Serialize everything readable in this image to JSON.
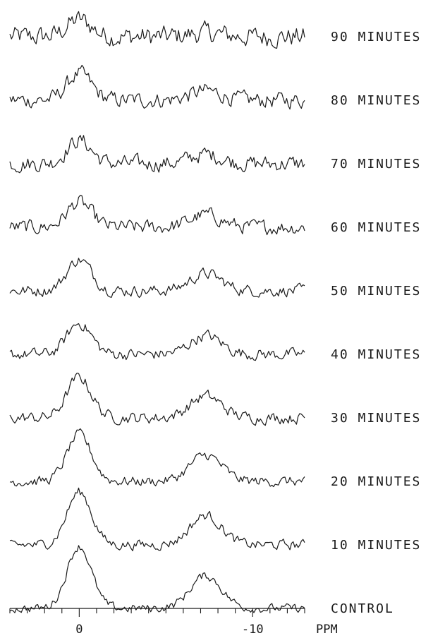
{
  "chart_data": {
    "type": "line",
    "x_unit_label": "PPM",
    "x_axis": {
      "reversed": true,
      "range": [
        4,
        -13
      ],
      "major_ticks": [
        0,
        -10
      ],
      "tick_labels": [
        "0",
        "-10"
      ],
      "minor_tick_step": 1
    },
    "series": [
      {
        "name": "90 MINUTES",
        "peak_amplitudes": [
          0.55,
          0.12
        ],
        "noise": 0.28
      },
      {
        "name": "80 MINUTES",
        "peak_amplitudes": [
          0.85,
          0.3
        ],
        "noise": 0.22
      },
      {
        "name": "70 MINUTES",
        "peak_amplitudes": [
          0.75,
          0.3
        ],
        "noise": 0.22
      },
      {
        "name": "60 MINUTES",
        "peak_amplitudes": [
          0.8,
          0.4
        ],
        "noise": 0.2
      },
      {
        "name": "50 MINUTES",
        "peak_amplitudes": [
          1.0,
          0.55
        ],
        "noise": 0.16
      },
      {
        "name": "40 MINUTES",
        "peak_amplitudes": [
          1.0,
          0.6
        ],
        "noise": 0.16
      },
      {
        "name": "30 MINUTES",
        "peak_amplitudes": [
          1.3,
          0.7
        ],
        "noise": 0.16
      },
      {
        "name": "20 MINUTES",
        "peak_amplitudes": [
          1.5,
          0.85
        ],
        "noise": 0.14
      },
      {
        "name": "10 MINUTES",
        "peak_amplitudes": [
          1.7,
          0.95
        ],
        "noise": 0.14
      },
      {
        "name": "CONTROL",
        "peak_amplitudes": [
          2.0,
          1.05
        ],
        "noise": 0.12
      }
    ],
    "peaks_ppm": [
      0,
      -7.3
    ],
    "peak_width_ppm": [
      0.7,
      0.9
    ],
    "grid": false,
    "legend": "none"
  },
  "colors": {
    "trace": "#1a1a1a",
    "background": "#ffffff"
  }
}
